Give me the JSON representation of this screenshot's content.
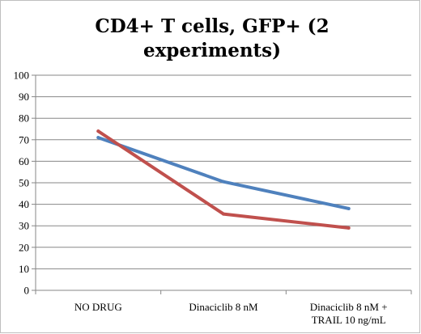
{
  "chart_data": {
    "type": "line",
    "title_lines": [
      "CD4+ T cells, GFP+ (2",
      "experiments)"
    ],
    "categories": [
      [
        "NO DRUG"
      ],
      [
        "Dinaciclib 8 nM"
      ],
      [
        "Dinaciclib 8 nM +",
        "TRAIL 10 ng/mL"
      ]
    ],
    "yticks": [
      "0",
      "10",
      "20",
      "30",
      "40",
      "50",
      "60",
      "70",
      "80",
      "90",
      "100"
    ],
    "ylim": [
      0,
      100
    ],
    "grid": "horizontal",
    "legend": "none",
    "series": [
      {
        "color": "#4f81bd",
        "values": [
          71,
          50.5,
          38
        ]
      },
      {
        "color": "#c0504d",
        "values": [
          74,
          35.5,
          29
        ]
      }
    ]
  }
}
